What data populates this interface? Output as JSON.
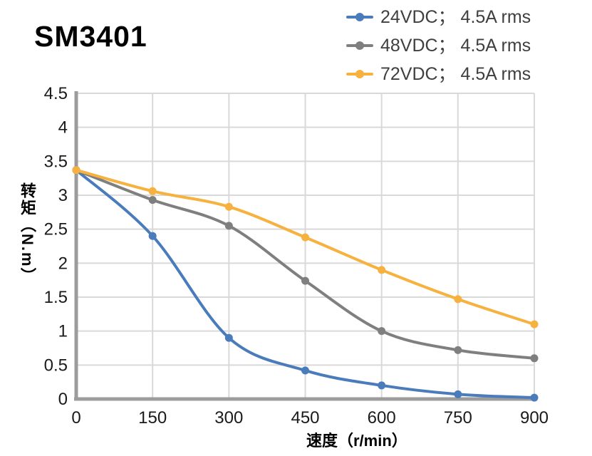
{
  "title": "SM3401",
  "legend": {
    "items": [
      {
        "label": "24VDC； 4.5A rms",
        "color": "#4A7CBC"
      },
      {
        "label": "48VDC； 4.5A rms",
        "color": "#7F7F7F"
      },
      {
        "label": "72VDC； 4.5A rms",
        "color": "#F6B13E"
      }
    ]
  },
  "chart_data": {
    "type": "line",
    "title": "SM3401",
    "xlabel": "速度（r/min）",
    "ylabel": "转矩（N.m）",
    "x": [
      0,
      150,
      300,
      450,
      600,
      750,
      900
    ],
    "series": [
      {
        "name": "24VDC； 4.5A rms",
        "color": "#4A7CBC",
        "values": [
          3.37,
          2.4,
          0.9,
          0.42,
          0.2,
          0.07,
          0.02
        ]
      },
      {
        "name": "48VDC； 4.5A rms",
        "color": "#7F7F7F",
        "values": [
          3.37,
          2.93,
          2.55,
          1.74,
          1.0,
          0.72,
          0.6
        ]
      },
      {
        "name": "72VDC； 4.5A rms",
        "color": "#F6B13E",
        "values": [
          3.37,
          3.06,
          2.83,
          2.38,
          1.9,
          1.47,
          1.1
        ]
      }
    ],
    "xlim": [
      0,
      900
    ],
    "ylim": [
      0,
      4.5
    ],
    "x_ticks": [
      0,
      150,
      300,
      450,
      600,
      750,
      900
    ],
    "y_ticks": [
      0,
      0.5,
      1,
      1.5,
      2,
      2.5,
      3,
      3.5,
      4,
      4.5
    ],
    "grid": true,
    "legend_position": "top-right",
    "colors": {
      "grid": "#D9D9D9",
      "axis": "#9C9C9C",
      "tick_text": "#1A1A1A"
    }
  }
}
